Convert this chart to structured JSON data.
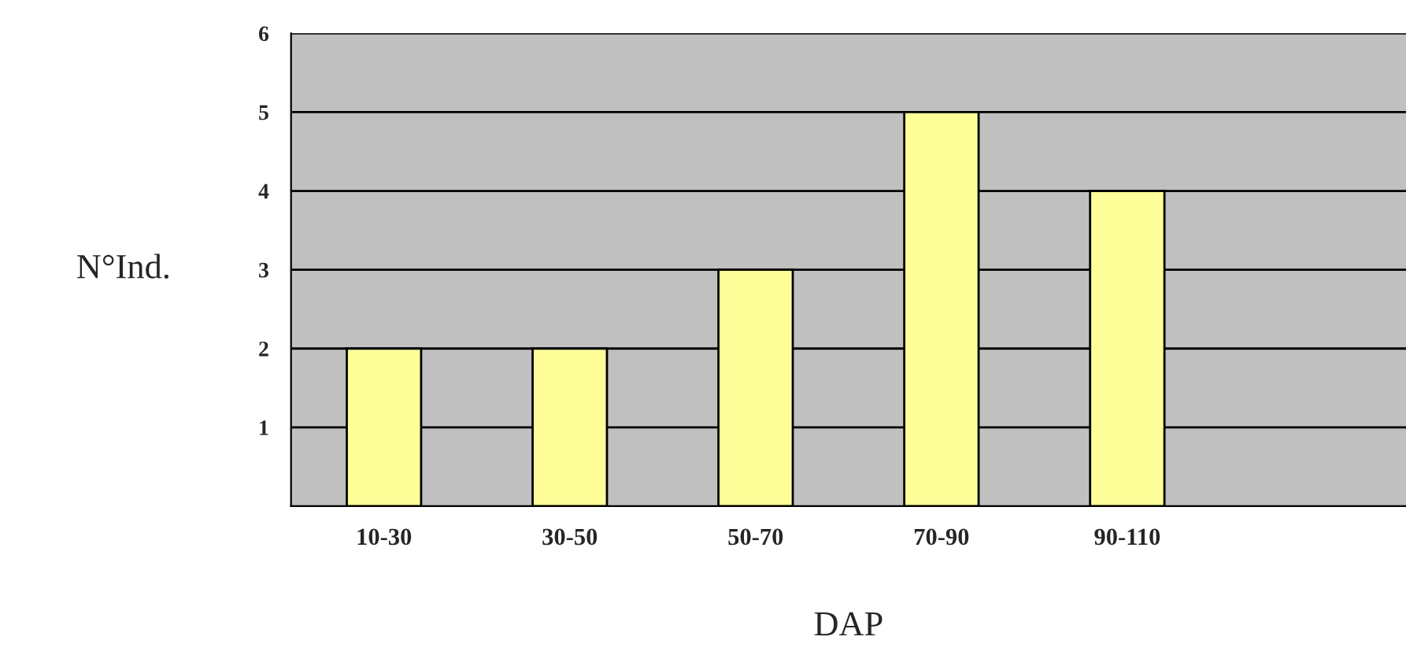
{
  "chart_data": {
    "type": "bar",
    "xlabel": "DAP",
    "ylabel": "N°Ind.",
    "categories": [
      "10-30",
      "30-50",
      "50-70",
      "70-90",
      "90-110",
      null
    ],
    "values": [
      2,
      2,
      3,
      5,
      4,
      null
    ],
    "color": "#ffff99",
    "ylim": [
      0,
      6
    ],
    "yticks": [
      1,
      2,
      3,
      4,
      5,
      6
    ],
    "grid": "y",
    "legend": false
  }
}
